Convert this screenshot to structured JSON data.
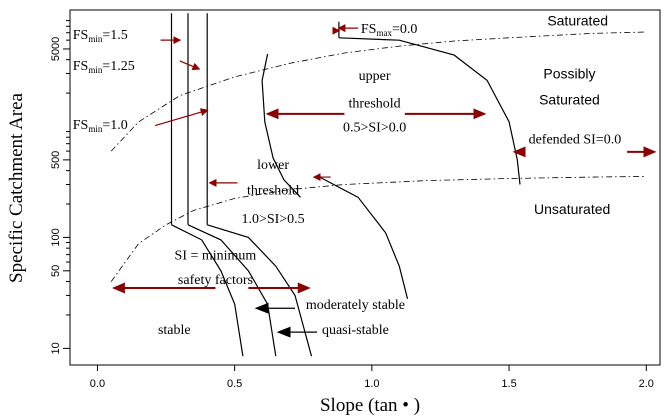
{
  "chart_data": {
    "type": "line",
    "xlabel": "Slope (tan • )",
    "ylabel": "Specific Catchment Area",
    "xlim": [
      -0.1,
      2.05
    ],
    "ylim_log10": [
      0.85,
      4.05
    ],
    "x_ticks": [
      {
        "value": 0.0,
        "label": "0.0"
      },
      {
        "value": 0.5,
        "label": "0.5"
      },
      {
        "value": 1.0,
        "label": "1.0"
      },
      {
        "value": 1.5,
        "label": "1.5"
      },
      {
        "value": 2.0,
        "label": "2.0"
      }
    ],
    "y_ticks": [
      {
        "value": 10,
        "label": "10"
      },
      {
        "value": 50,
        "label": "50"
      },
      {
        "value": 100,
        "label": "100"
      },
      {
        "value": 500,
        "label": "500"
      },
      {
        "value": 5000,
        "label": "5000"
      }
    ],
    "y_minor_ticks": [
      20,
      30,
      40,
      60,
      70,
      80,
      90,
      200,
      300,
      400,
      600,
      700,
      800,
      900,
      2000,
      3000,
      4000,
      6000,
      7000,
      8000,
      9000
    ],
    "region_labels": [
      {
        "text": "Saturated",
        "x": 1.75,
        "y": 9000,
        "font": "sans"
      },
      {
        "text": "Possibly",
        "x": 1.72,
        "y": 3000,
        "font": "sans"
      },
      {
        "text": "Saturated",
        "x": 1.72,
        "y": 1750,
        "font": "sans"
      },
      {
        "text": "Unsaturated",
        "x": 1.73,
        "y": 180,
        "font": "sans"
      },
      {
        "text": "upper",
        "x": 1.01,
        "y": 2900,
        "font": "serif"
      },
      {
        "text": "threshold",
        "x": 1.01,
        "y": 1650,
        "font": "serif"
      },
      {
        "text": "0.5>SI>0.0",
        "x": 1.01,
        "y": 1000,
        "font": "serif"
      },
      {
        "text": "lower",
        "x": 0.64,
        "y": 460,
        "font": "serif"
      },
      {
        "text": "threshold",
        "x": 0.64,
        "y": 270,
        "font": "serif"
      },
      {
        "text": "1.0>SI>0.5",
        "x": 0.64,
        "y": 150,
        "font": "serif"
      },
      {
        "text": "SI = minimum",
        "x": 0.43,
        "y": 70,
        "font": "serif"
      },
      {
        "text": "safety factors",
        "x": 0.43,
        "y": 42,
        "font": "serif"
      },
      {
        "text": "defended SI=0.0",
        "x": 1.74,
        "y": 780,
        "font": "serif"
      },
      {
        "text": "moderately stable",
        "x": 0.94,
        "y": 25,
        "font": "serif"
      },
      {
        "text": "quasi-stable",
        "x": 0.94,
        "y": 15,
        "font": "serif"
      },
      {
        "text": "stable",
        "x": 0.28,
        "y": 15,
        "font": "serif"
      }
    ],
    "fs_labels": [
      {
        "base": "FS",
        "sub": "min",
        "val": "=1.5",
        "x": -0.09,
        "y": 6800
      },
      {
        "base": "FS",
        "sub": "min",
        "val": "=1.25",
        "x": -0.09,
        "y": 3600
      },
      {
        "base": "FS",
        "sub": "min",
        "val": "=1.0",
        "x": -0.09,
        "y": 1050
      },
      {
        "base": "FS",
        "sub": "max",
        "val": "=0.0",
        "x": 0.96,
        "y": 7700
      }
    ],
    "series": [
      {
        "style": "dashdot",
        "points": [
          [
            0.05,
            600
          ],
          [
            0.15,
            1100
          ],
          [
            0.3,
            1900
          ],
          [
            0.5,
            2800
          ],
          [
            0.7,
            3700
          ],
          [
            0.9,
            4600
          ],
          [
            1.1,
            5300
          ],
          [
            1.3,
            5900
          ],
          [
            1.5,
            6300
          ],
          [
            1.8,
            6900
          ],
          [
            2.0,
            7100
          ]
        ]
      },
      {
        "style": "dashdot",
        "points": [
          [
            0.05,
            40
          ],
          [
            0.15,
            88
          ],
          [
            0.25,
            130
          ],
          [
            0.35,
            175
          ],
          [
            0.5,
            225
          ],
          [
            0.7,
            270
          ],
          [
            0.9,
            300
          ],
          [
            1.2,
            325
          ],
          [
            1.5,
            340
          ],
          [
            1.8,
            350
          ],
          [
            2.0,
            355
          ]
        ]
      },
      {
        "style": "solid",
        "points": [
          [
            0.27,
            130
          ],
          [
            0.27,
            10500
          ]
        ]
      },
      {
        "style": "solid",
        "points": [
          [
            0.33,
            130
          ],
          [
            0.33,
            10500
          ]
        ]
      },
      {
        "style": "solid",
        "points": [
          [
            0.4,
            130
          ],
          [
            0.4,
            10500
          ]
        ]
      },
      {
        "style": "solid",
        "points": [
          [
            0.88,
            6300
          ],
          [
            0.88,
            8800
          ]
        ]
      },
      {
        "style": "solid",
        "points": [
          [
            0.27,
            130
          ],
          [
            0.38,
            95
          ],
          [
            0.45,
            50
          ],
          [
            0.5,
            25
          ],
          [
            0.53,
            8.5
          ]
        ]
      },
      {
        "style": "solid",
        "points": [
          [
            0.33,
            130
          ],
          [
            0.45,
            95
          ],
          [
            0.55,
            50
          ],
          [
            0.62,
            25
          ],
          [
            0.65,
            8.5
          ]
        ]
      },
      {
        "style": "solid",
        "points": [
          [
            0.4,
            130
          ],
          [
            0.55,
            100
          ],
          [
            0.65,
            55
          ],
          [
            0.72,
            30
          ],
          [
            0.78,
            8.5
          ]
        ]
      },
      {
        "style": "solid",
        "points": [
          [
            0.62,
            4500
          ],
          [
            0.6,
            2600
          ],
          [
            0.61,
            1100
          ],
          [
            0.64,
            520
          ],
          [
            0.68,
            330
          ],
          [
            0.74,
            230
          ]
        ]
      },
      {
        "style": "solid",
        "points": [
          [
            0.81,
            350
          ],
          [
            0.95,
            230
          ],
          [
            1.05,
            110
          ],
          [
            1.1,
            55
          ],
          [
            1.13,
            28
          ]
        ]
      },
      {
        "style": "solid",
        "points": [
          [
            0.88,
            6300
          ],
          [
            1.1,
            6000
          ],
          [
            1.3,
            4400
          ],
          [
            1.42,
            2600
          ],
          [
            1.5,
            1100
          ],
          [
            1.53,
            500
          ],
          [
            1.54,
            300
          ]
        ]
      }
    ],
    "arrows": [
      {
        "from": [
          0.23,
          6000
        ],
        "to": [
          0.3,
          6000
        ],
        "size": "small"
      },
      {
        "from": [
          0.3,
          3900
        ],
        "to": [
          0.37,
          3300
        ],
        "size": "small"
      },
      {
        "from": [
          0.21,
          1020
        ],
        "to": [
          0.4,
          1400
        ],
        "size": "small"
      },
      {
        "from": [
          0.95,
          7700
        ],
        "to": [
          0.88,
          7700
        ],
        "size": "small"
      },
      {
        "from": [
          0.51,
          310
        ],
        "to": [
          0.41,
          310
        ],
        "size": "small"
      },
      {
        "from": [
          0.85,
          350
        ],
        "to": [
          0.79,
          350
        ],
        "size": "small"
      },
      {
        "from": [
          0.86,
          7300
        ],
        "to": [
          0.88,
          7300
        ],
        "size": "small"
      },
      {
        "from": [
          0.9,
          1300
        ],
        "to": [
          0.62,
          1300
        ],
        "size": "large"
      },
      {
        "from": [
          1.12,
          1300
        ],
        "to": [
          1.41,
          1300
        ],
        "size": "large"
      },
      {
        "from": [
          1.56,
          590
        ],
        "to": [
          1.52,
          590
        ],
        "size": "large"
      },
      {
        "from": [
          1.93,
          590
        ],
        "to": [
          2.03,
          590
        ],
        "size": "large"
      },
      {
        "from": [
          0.43,
          35
        ],
        "to": [
          0.06,
          35
        ],
        "size": "large"
      },
      {
        "from": [
          0.55,
          35
        ],
        "to": [
          0.77,
          35
        ],
        "size": "large"
      },
      {
        "from": [
          0.72,
          23
        ],
        "to": [
          0.58,
          23
        ],
        "size": "large"
      },
      {
        "from": [
          0.8,
          14
        ],
        "to": [
          0.66,
          14
        ],
        "size": "large"
      }
    ],
    "colors": {
      "arrow": "#8b0000",
      "black_arrow": "#000000",
      "line": "#000000"
    }
  }
}
